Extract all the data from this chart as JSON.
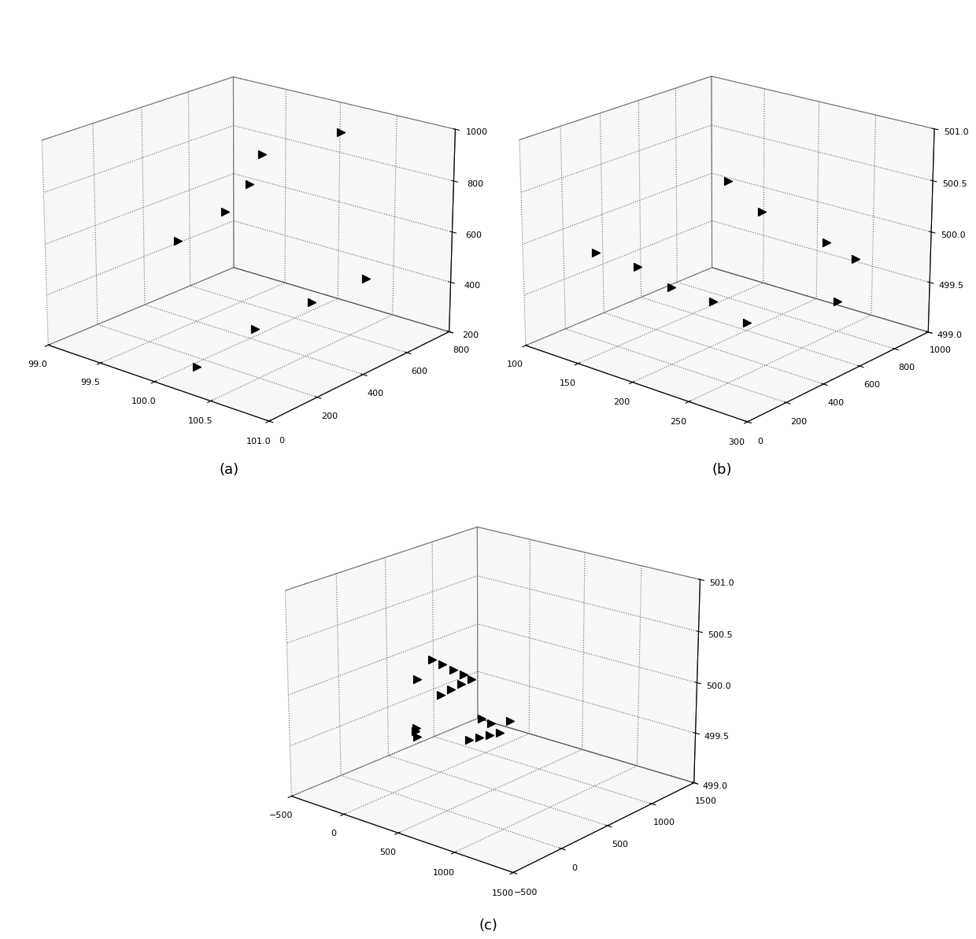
{
  "plot_a": {
    "points_x": [
      100.0,
      100.2,
      100.1,
      99.9,
      100.3,
      100.05,
      100.15,
      100.25,
      100.35
    ],
    "points_y": [
      100,
      200,
      350,
      500,
      650,
      150,
      350,
      550,
      750
    ],
    "points_z": [
      700,
      800,
      840,
      880,
      960,
      200,
      280,
      320,
      350
    ],
    "xlim": [
      99,
      101
    ],
    "ylim": [
      0,
      800
    ],
    "zlim": [
      200,
      1000
    ],
    "xticks": [
      99,
      99.5,
      100,
      100.5,
      101
    ],
    "yticks": [
      0,
      200,
      400,
      600,
      800
    ],
    "zticks": [
      200,
      400,
      600,
      800,
      1000
    ],
    "label": "(a)"
  },
  "plot_b": {
    "points_x": [
      150,
      170,
      200,
      220,
      250,
      200,
      230,
      270,
      280,
      250
    ],
    "points_y": [
      100,
      200,
      200,
      300,
      300,
      500,
      500,
      600,
      700,
      800
    ],
    "points_z": [
      500.0,
      499.85,
      499.75,
      499.6,
      499.5,
      500.55,
      500.35,
      500.1,
      499.9,
      499.3
    ],
    "xlim": [
      100,
      300
    ],
    "ylim": [
      0,
      1000
    ],
    "zlim": [
      499,
      501
    ],
    "xticks": [
      100,
      150,
      200,
      250,
      300
    ],
    "yticks": [
      0,
      200,
      400,
      600,
      800,
      1000
    ],
    "zticks": [
      499,
      499.5,
      500,
      500.5,
      501
    ],
    "label": "(b)"
  },
  "plot_c": {
    "points_x": [
      200,
      250,
      300,
      350,
      100,
      150,
      200,
      250,
      300,
      350,
      100,
      50,
      0,
      -50,
      400,
      450,
      500,
      550,
      600
    ],
    "points_y": [
      200,
      250,
      300,
      350,
      400,
      450,
      500,
      550,
      600,
      650,
      150,
      200,
      250,
      300,
      350,
      400,
      450,
      500,
      550
    ],
    "points_z": [
      500.3,
      500.25,
      500.2,
      500.15,
      499.85,
      499.9,
      499.95,
      500.0,
      499.6,
      499.55,
      500.1,
      499.5,
      499.55,
      499.48,
      499.52,
      499.54,
      499.56,
      499.58,
      499.7
    ],
    "xlim": [
      -500,
      1500
    ],
    "ylim": [
      -500,
      1500
    ],
    "zlim": [
      499,
      501
    ],
    "xticks": [
      -500,
      0,
      500,
      1000,
      1500
    ],
    "yticks": [
      -500,
      0,
      500,
      1000,
      1500
    ],
    "zticks": [
      499,
      499.5,
      500,
      500.5,
      501
    ],
    "label": "(c)"
  },
  "background_color": "#ffffff",
  "marker": ">",
  "marker_color": "black",
  "marker_size": 50,
  "elev": 20,
  "azim": -50,
  "label_fontsize": 13
}
